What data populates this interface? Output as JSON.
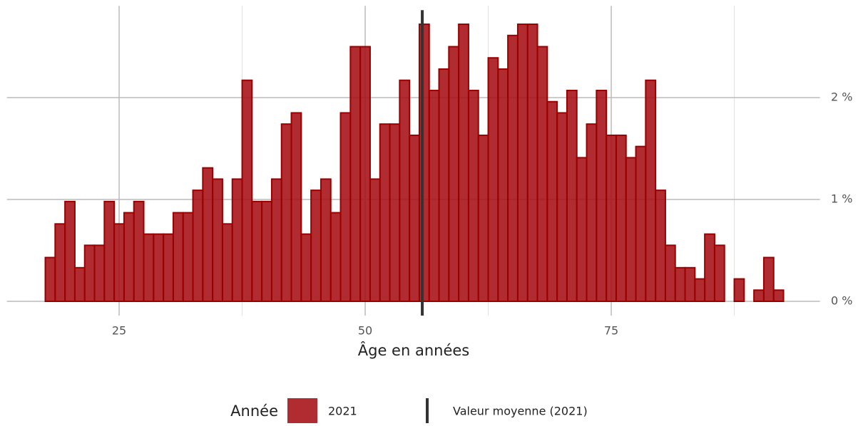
{
  "chart_data": {
    "type": "histogram",
    "x_label": "Âge en années",
    "bins": [
      17.5,
      18.5,
      19.5,
      20.5,
      21.5,
      22.5,
      23.5,
      24.5,
      25.5,
      26.5,
      27.5,
      28.5,
      29.5,
      30.5,
      31.5,
      32.5,
      33.5,
      34.5,
      35.5,
      36.5,
      37.5,
      38.5,
      39.5,
      40.5,
      41.5,
      42.5,
      43.5,
      44.5,
      45.5,
      46.5,
      47.5,
      48.5,
      49.5,
      50.5,
      51.5,
      52.5,
      53.5,
      54.5,
      55.5,
      56.5,
      57.5,
      58.5,
      59.5,
      60.5,
      61.5,
      62.5,
      63.5,
      64.5,
      65.5,
      66.5,
      67.5,
      68.5,
      69.5,
      70.5,
      71.5,
      72.5,
      73.5,
      74.5,
      75.5,
      76.5,
      77.5,
      78.5,
      79.5,
      80.5,
      81.5,
      82.5,
      83.5,
      84.5,
      85.5,
      86.5,
      87.5,
      88.5,
      89.5,
      90.5,
      91.5,
      92.5
    ],
    "series": [
      {
        "name": "2021",
        "color": "#a50f15",
        "edge_color": "#9b0000",
        "values": [
          0.43,
          0.76,
          0.98,
          0.33,
          0.55,
          0.55,
          0.98,
          0.76,
          0.87,
          0.98,
          0.66,
          0.66,
          0.66,
          0.87,
          0.87,
          1.09,
          1.31,
          1.2,
          0.76,
          1.2,
          2.17,
          0.98,
          0.98,
          1.2,
          1.74,
          1.85,
          0.66,
          1.09,
          1.2,
          0.87,
          1.85,
          2.5,
          2.5,
          1.2,
          1.74,
          1.74,
          2.17,
          1.63,
          2.72,
          2.07,
          2.28,
          2.5,
          2.72,
          2.07,
          1.63,
          2.39,
          2.28,
          2.61,
          2.72,
          2.72,
          2.5,
          1.96,
          1.85,
          2.07,
          1.41,
          1.74,
          2.07,
          1.63,
          1.63,
          1.41,
          1.52,
          2.17,
          1.09,
          0.55,
          0.33,
          0.33,
          0.22,
          0.66,
          0.55,
          0,
          0.22,
          0,
          0.11,
          0.43,
          0.11
        ]
      }
    ],
    "mean_line": {
      "name": "Valeur moyenne (2021)",
      "value": 55.8,
      "color": "#333333"
    },
    "legend_title": "Année",
    "xlim": [
      13.6,
      96.2
    ],
    "xticks": [
      25,
      50,
      75
    ],
    "xminorticks": [
      37.5,
      62.5,
      87.5
    ],
    "ylim": [
      0,
      2.9
    ],
    "yticks": [
      {
        "value": 0,
        "label": "0 %"
      },
      {
        "value": 1,
        "label": "1 %"
      },
      {
        "value": 2,
        "label": "2 %"
      }
    ],
    "grid": true
  }
}
